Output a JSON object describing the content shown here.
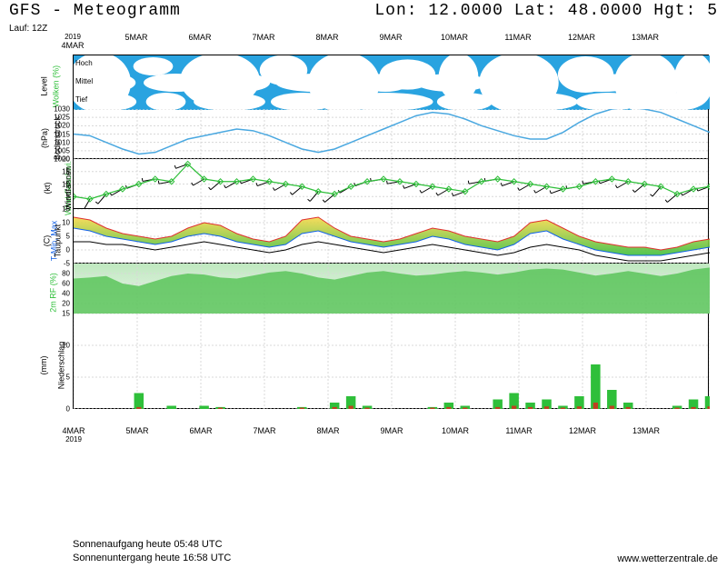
{
  "header": {
    "title_left": "GFS - Meteogramm",
    "title_right": "Lon: 12.0000 Lat: 48.0000 Hgt: 5",
    "run": "Lauf: 12Z"
  },
  "footer": {
    "sunrise": "Sonnenaufgang heute 05:48 UTC",
    "sunset": "Sonnenuntergang heute 16:58 UTC",
    "credit": "www.wetterzentrale.de"
  },
  "time_axis": {
    "year": "2019",
    "labels": [
      "4MAR",
      "5MAR",
      "6MAR",
      "7MAR",
      "8MAR",
      "9MAR",
      "10MAR",
      "11MAR",
      "12MAR",
      "13MAR"
    ],
    "n_days": 10
  },
  "colors": {
    "sky": "#29a3e0",
    "cloud": "#ffffff",
    "grid": "#d0d0d0",
    "border": "#000000",
    "pressure_line": "#4aa8e0",
    "wind_line": "#2fbf3a",
    "wind_marker": "#2fbf3a",
    "barb": "#000000",
    "tmin": "#1060e8",
    "tmax": "#e03030",
    "temp_fill_top": "#f7d84a",
    "temp_fill_bot": "#3fbf3f",
    "dewpoint": "#000000",
    "rh_fill": "#5ac45a",
    "rh_grad_top": "#bfe8bf",
    "rh_grad_bot": "#f2f7f2",
    "precip_bar": "#2fbf3a",
    "precip_bar2": "#c04020"
  },
  "panels": {
    "clouds": {
      "label_rot": "Wolken (%)",
      "label_sub": "Level",
      "rows": [
        "Hoch",
        "Mittel",
        "Tief"
      ],
      "label_color": "#2fbf3a",
      "height": 60,
      "cloud_shapes": [
        [
          0,
          0.0,
          0.08,
          1.0
        ],
        [
          0.1,
          0.05,
          0.05,
          0.3
        ],
        [
          0.18,
          0.0,
          0.1,
          0.9
        ],
        [
          0.3,
          0.02,
          0.06,
          0.5
        ],
        [
          0.38,
          0.0,
          0.09,
          1.0
        ],
        [
          0.49,
          0.1,
          0.07,
          0.5
        ],
        [
          0.58,
          0.0,
          0.05,
          0.8
        ],
        [
          0.65,
          0.0,
          0.1,
          1.0
        ],
        [
          0.77,
          0.05,
          0.07,
          0.6
        ],
        [
          0.86,
          0.0,
          0.08,
          1.0
        ],
        [
          0.95,
          0.0,
          0.05,
          0.9
        ],
        [
          0.03,
          0.35,
          0.06,
          0.3
        ],
        [
          0.12,
          0.35,
          0.08,
          0.3
        ],
        [
          0.23,
          0.35,
          0.07,
          0.3
        ],
        [
          0.33,
          0.35,
          0.1,
          0.3
        ],
        [
          0.46,
          0.35,
          0.06,
          0.3
        ],
        [
          0.55,
          0.35,
          0.09,
          0.3
        ],
        [
          0.67,
          0.35,
          0.07,
          0.3
        ],
        [
          0.78,
          0.35,
          0.1,
          0.3
        ],
        [
          0.9,
          0.35,
          0.06,
          0.3
        ],
        [
          0.02,
          0.7,
          0.07,
          0.3
        ],
        [
          0.12,
          0.7,
          0.05,
          0.3
        ],
        [
          0.2,
          0.7,
          0.09,
          0.3
        ],
        [
          0.32,
          0.7,
          0.08,
          0.3
        ],
        [
          0.43,
          0.7,
          0.12,
          0.3
        ],
        [
          0.58,
          0.7,
          0.07,
          0.3
        ],
        [
          0.68,
          0.7,
          0.1,
          0.3
        ],
        [
          0.8,
          0.7,
          0.08,
          0.3
        ],
        [
          0.91,
          0.7,
          0.07,
          0.3
        ]
      ]
    },
    "pressure": {
      "label_rot": "Bodendruck",
      "unit": "(hPa)",
      "height": 55,
      "ylim": [
        1000,
        1030
      ],
      "yticks": [
        1000,
        1005,
        1010,
        1015,
        1020,
        1025,
        1030
      ],
      "values": [
        1015,
        1014,
        1010,
        1006,
        1003,
        1004,
        1008,
        1012,
        1014,
        1016,
        1018,
        1017,
        1014,
        1010,
        1006,
        1004,
        1006,
        1010,
        1014,
        1018,
        1022,
        1026,
        1028,
        1027,
        1024,
        1020,
        1017,
        1014,
        1012,
        1012,
        1016,
        1022,
        1027,
        1030,
        1031,
        1030,
        1028,
        1024,
        1020,
        1016
      ]
    },
    "wind": {
      "label_rot": "Wind Geschwi.",
      "label_sub": "Windfahnen",
      "unit": "(kt)",
      "label_color": "#2fbf3a",
      "height": 55,
      "ylim": [
        0,
        20
      ],
      "yticks": [
        5,
        10,
        15,
        20
      ],
      "speed": [
        5,
        4,
        6,
        8,
        10,
        12,
        11,
        18,
        12,
        11,
        11,
        12,
        11,
        10,
        9,
        7,
        6,
        9,
        11,
        12,
        11,
        10,
        9,
        8,
        7,
        11,
        12,
        11,
        10,
        9,
        8,
        9,
        11,
        12,
        11,
        10,
        9,
        6,
        8,
        9
      ],
      "barb_dir": [
        200,
        210,
        220,
        240,
        250,
        260,
        260,
        250,
        240,
        230,
        240,
        250,
        250,
        240,
        230,
        220,
        230,
        240,
        250,
        260,
        260,
        250,
        240,
        240,
        250,
        260,
        260,
        250,
        240,
        240,
        250,
        260,
        260,
        250,
        240,
        230,
        220,
        230,
        240,
        250
      ]
    },
    "temp": {
      "label_rot": "T-Min, Max",
      "label_sub": "Taupunkt",
      "unit": "(C)",
      "label_color": "#1060e8",
      "height": 60,
      "ylim": [
        -5,
        15
      ],
      "yticks": [
        -5,
        0,
        5,
        10,
        15
      ],
      "tmax": [
        12,
        11,
        8,
        6,
        5,
        4,
        5,
        8,
        10,
        9,
        6,
        4,
        3,
        5,
        11,
        12,
        8,
        5,
        4,
        3,
        4,
        6,
        8,
        7,
        5,
        4,
        3,
        5,
        10,
        11,
        8,
        5,
        3,
        2,
        1,
        1,
        0,
        1,
        3,
        4
      ],
      "tmin": [
        8,
        7,
        5,
        4,
        3,
        2,
        3,
        5,
        6,
        5,
        3,
        2,
        1,
        2,
        6,
        7,
        5,
        3,
        2,
        1,
        2,
        3,
        5,
        4,
        2,
        1,
        0,
        2,
        6,
        7,
        4,
        2,
        0,
        -1,
        -2,
        -2,
        -2,
        -1,
        0,
        1
      ],
      "dew": [
        3,
        3,
        2,
        2,
        1,
        0,
        1,
        2,
        3,
        2,
        1,
        0,
        -1,
        0,
        2,
        3,
        2,
        1,
        0,
        -1,
        0,
        1,
        2,
        1,
        0,
        -1,
        -2,
        -1,
        1,
        2,
        1,
        0,
        -2,
        -3,
        -4,
        -4,
        -4,
        -3,
        -2,
        -1
      ]
    },
    "rh": {
      "label_rot": "2m RF (%)",
      "label_color": "#2fbf3a",
      "height": 55,
      "ylim": [
        0,
        100
      ],
      "yticks": [
        20,
        40,
        60,
        80
      ],
      "values": [
        70,
        72,
        75,
        60,
        55,
        65,
        75,
        80,
        78,
        72,
        70,
        76,
        82,
        85,
        80,
        72,
        68,
        75,
        82,
        85,
        80,
        76,
        78,
        82,
        85,
        82,
        78,
        82,
        88,
        90,
        88,
        82,
        76,
        80,
        85,
        80,
        75,
        80,
        88,
        92
      ]
    },
    "precip": {
      "label_rot": "Niederschlag",
      "unit": "(mm)",
      "height": 105,
      "ylim": [
        0,
        15
      ],
      "yticks": [
        0,
        5,
        10,
        15
      ],
      "values": [
        0,
        0,
        0,
        0,
        2.5,
        0,
        0.5,
        0,
        0.5,
        0.3,
        0,
        0,
        0,
        0,
        0.3,
        0,
        1,
        2,
        0.5,
        0,
        0,
        0,
        0.3,
        1,
        0.5,
        0,
        1.5,
        2.5,
        1,
        1.5,
        0.5,
        2,
        7,
        3,
        1,
        0,
        0,
        0.5,
        1.5,
        2
      ],
      "values2": [
        0,
        0,
        0,
        0,
        0.3,
        0,
        0,
        0,
        0,
        0.2,
        0,
        0,
        0,
        0,
        0.2,
        0,
        0.3,
        0.5,
        0.2,
        0,
        0,
        0,
        0.2,
        0.3,
        0.2,
        0,
        0.3,
        0.5,
        0.3,
        0.4,
        0.2,
        0.4,
        1,
        0.5,
        0.3,
        0,
        0,
        0.2,
        0.3,
        0.4
      ]
    }
  }
}
